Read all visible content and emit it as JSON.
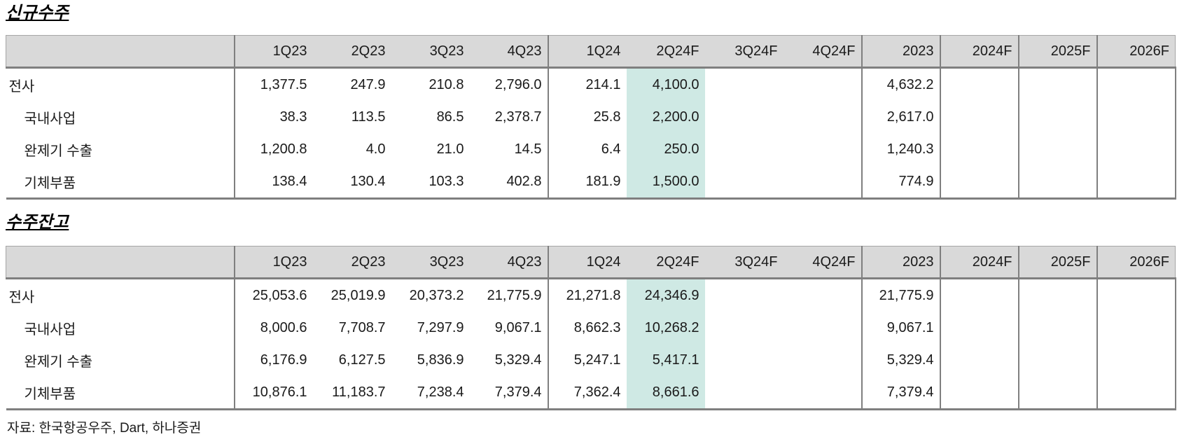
{
  "columns": [
    "1Q23",
    "2Q23",
    "3Q23",
    "4Q23",
    "1Q24",
    "2Q24F",
    "3Q24F",
    "4Q24F",
    "2023",
    "2024F",
    "2025F",
    "2026F"
  ],
  "highlight_column": "2Q24F",
  "colors": {
    "highlight_bg": "#cfe9e4",
    "header_bg": "#d9d9d9",
    "rule": "#7f7f7f"
  },
  "tables": [
    {
      "title": "신규수주",
      "rows": [
        {
          "label": "전사",
          "indent": false,
          "values": [
            "1,377.5",
            "247.9",
            "210.8",
            "2,796.0",
            "214.1",
            "4,100.0",
            "",
            "",
            "4,632.2",
            "",
            "",
            ""
          ]
        },
        {
          "label": "국내사업",
          "indent": true,
          "values": [
            "38.3",
            "113.5",
            "86.5",
            "2,378.7",
            "25.8",
            "2,200.0",
            "",
            "",
            "2,617.0",
            "",
            "",
            ""
          ]
        },
        {
          "label": "완제기 수출",
          "indent": true,
          "values": [
            "1,200.8",
            "4.0",
            "21.0",
            "14.5",
            "6.4",
            "250.0",
            "",
            "",
            "1,240.3",
            "",
            "",
            ""
          ]
        },
        {
          "label": "기체부품",
          "indent": true,
          "values": [
            "138.4",
            "130.4",
            "103.3",
            "402.8",
            "181.9",
            "1,500.0",
            "",
            "",
            "774.9",
            "",
            "",
            ""
          ]
        }
      ]
    },
    {
      "title": "수주잔고",
      "rows": [
        {
          "label": "전사",
          "indent": false,
          "values": [
            "25,053.6",
            "25,019.9",
            "20,373.2",
            "21,775.9",
            "21,271.8",
            "24,346.9",
            "",
            "",
            "21,775.9",
            "",
            "",
            ""
          ]
        },
        {
          "label": "국내사업",
          "indent": true,
          "values": [
            "8,000.6",
            "7,708.7",
            "7,297.9",
            "9,067.1",
            "8,662.3",
            "10,268.2",
            "",
            "",
            "9,067.1",
            "",
            "",
            ""
          ]
        },
        {
          "label": "완제기 수출",
          "indent": true,
          "values": [
            "6,176.9",
            "6,127.5",
            "5,836.9",
            "5,329.4",
            "5,247.1",
            "5,417.1",
            "",
            "",
            "5,329.4",
            "",
            "",
            ""
          ]
        },
        {
          "label": "기체부품",
          "indent": true,
          "values": [
            "10,876.1",
            "11,183.7",
            "7,238.4",
            "7,379.4",
            "7,362.4",
            "8,661.6",
            "",
            "",
            "7,379.4",
            "",
            "",
            ""
          ]
        }
      ]
    }
  ],
  "source": "자료: 한국항공우주, Dart, 하나증권"
}
